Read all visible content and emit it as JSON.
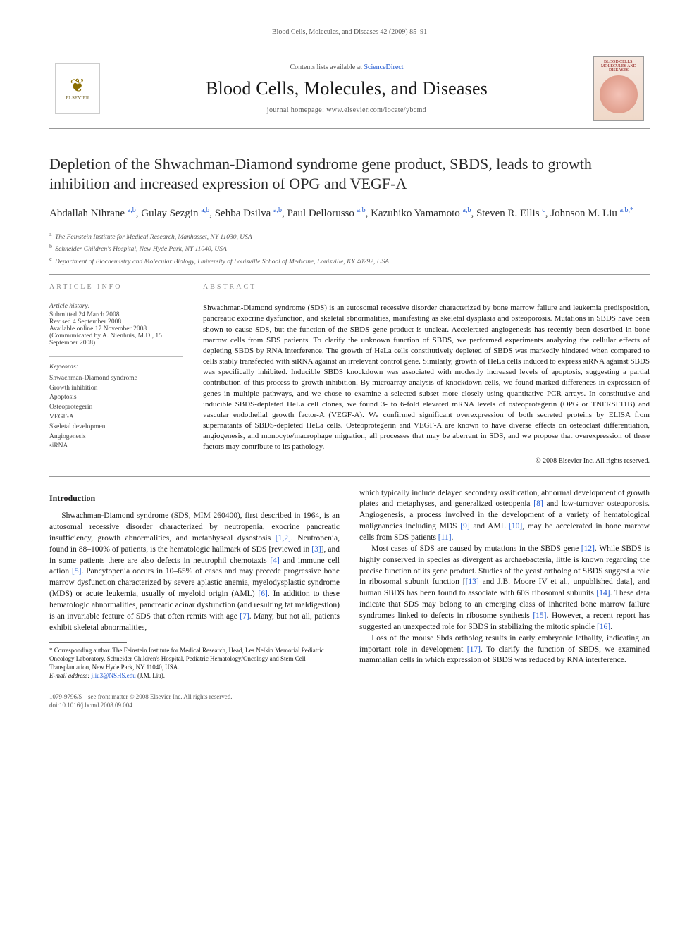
{
  "running_head": "Blood Cells, Molecules, and Diseases 42 (2009) 85–91",
  "masthead": {
    "contents_prefix": "Contents lists available at ",
    "contents_link": "ScienceDirect",
    "journal_title": "Blood Cells, Molecules, and Diseases",
    "homepage_prefix": "journal homepage: ",
    "homepage_url": "www.elsevier.com/locate/ybcmd",
    "elsevier_label": "ELSEVIER",
    "cover_text": "BLOOD CELLS, MOLECULES AND DISEASES"
  },
  "title": "Depletion of the Shwachman-Diamond syndrome gene product, SBDS, leads to growth inhibition and increased expression of OPG and VEGF-A",
  "authors_html": "Abdallah Nihrane <sup>a,b</sup>, Gulay Sezgin <sup>a,b</sup>, Sehba Dsilva <sup>a,b</sup>, Paul Dellorusso <sup>a,b</sup>, Kazuhiko Yamamoto <sup>a,b</sup>, Steven R. Ellis <sup>c</sup>, Johnson M. Liu <sup>a,b,*</sup>",
  "affiliations": {
    "a": "The Feinstein Institute for Medical Research, Manhasset, NY 11030, USA",
    "b": "Schneider Children's Hospital, New Hyde Park, NY 11040, USA",
    "c": "Department of Biochemistry and Molecular Biology, University of Louisville School of Medicine, Louisville, KY 40292, USA"
  },
  "article_info": {
    "heading": "ARTICLE INFO",
    "history_label": "Article history:",
    "history": [
      "Submitted 24 March 2008",
      "Revised 4 September 2008",
      "Available online 17 November 2008",
      "(Communicated by A. Nienhuis, M.D., 15 September 2008)"
    ],
    "keywords_label": "Keywords:",
    "keywords": [
      "Shwachman-Diamond syndrome",
      "Growth inhibition",
      "Apoptosis",
      "Osteoprotegerin",
      "VEGF-A",
      "Skeletal development",
      "Angiogenesis",
      "siRNA"
    ]
  },
  "abstract": {
    "heading": "ABSTRACT",
    "text": "Shwachman-Diamond syndrome (SDS) is an autosomal recessive disorder characterized by bone marrow failure and leukemia predisposition, pancreatic exocrine dysfunction, and skeletal abnormalities, manifesting as skeletal dysplasia and osteoporosis. Mutations in SBDS have been shown to cause SDS, but the function of the SBDS gene product is unclear. Accelerated angiogenesis has recently been described in bone marrow cells from SDS patients. To clarify the unknown function of SBDS, we performed experiments analyzing the cellular effects of depleting SBDS by RNA interference. The growth of HeLa cells constitutively depleted of SBDS was markedly hindered when compared to cells stably transfected with siRNA against an irrelevant control gene. Similarly, growth of HeLa cells induced to express siRNA against SBDS was specifically inhibited. Inducible SBDS knockdown was associated with modestly increased levels of apoptosis, suggesting a partial contribution of this process to growth inhibition. By microarray analysis of knockdown cells, we found marked differences in expression of genes in multiple pathways, and we chose to examine a selected subset more closely using quantitative PCR arrays. In constitutive and inducible SBDS-depleted HeLa cell clones, we found 3- to 6-fold elevated mRNA levels of osteoprotegerin (OPG or TNFRSF11B) and vascular endothelial growth factor-A (VEGF-A). We confirmed significant overexpression of both secreted proteins by ELISA from supernatants of SBDS-depleted HeLa cells. Osteoprotegerin and VEGF-A are known to have diverse effects on osteoclast differentiation, angiogenesis, and monocyte/macrophage migration, all processes that may be aberrant in SDS, and we propose that overexpression of these factors may contribute to its pathology.",
    "copyright": "© 2008 Elsevier Inc. All rights reserved."
  },
  "body": {
    "intro_heading": "Introduction",
    "p1": "Shwachman-Diamond syndrome (SDS, MIM 260400), first described in 1964, is an autosomal recessive disorder characterized by neutropenia, exocrine pancreatic insufficiency, growth abnormalities, and metaphyseal dysostosis [1,2]. Neutropenia, found in 88–100% of patients, is the hematologic hallmark of SDS [reviewed in [3]], and in some patients there are also defects in neutrophil chemotaxis [4] and immune cell action [5]. Pancytopenia occurs in 10–65% of cases and may precede progressive bone marrow dysfunction characterized by severe aplastic anemia, myelodysplastic syndrome (MDS) or acute leukemia, usually of myeloid origin (AML) [6]. In addition to these hematologic abnormalities, pancreatic acinar dysfunction (and resulting fat maldigestion) is an invariable feature of SDS that often remits with age [7]. Many, but not all, patients exhibit skeletal abnormalities,",
    "p2": "which typically include delayed secondary ossification, abnormal development of growth plates and metaphyses, and generalized osteopenia [8] and low-turnover osteoporosis. Angiogenesis, a process involved in the development of a variety of hematological malignancies including MDS [9] and AML [10], may be accelerated in bone marrow cells from SDS patients [11].",
    "p3": "Most cases of SDS are caused by mutations in the SBDS gene [12]. While SBDS is highly conserved in species as divergent as archaebacteria, little is known regarding the precise function of its gene product. Studies of the yeast ortholog of SBDS suggest a role in ribosomal subunit function [[13] and J.B. Moore IV et al., unpublished data], and human SBDS has been found to associate with 60S ribosomal subunits [14]. These data indicate that SDS may belong to an emerging class of inherited bone marrow failure syndromes linked to defects in ribosome synthesis [15]. However, a recent report has suggested an unexpected role for SBDS in stabilizing the mitotic spindle [16].",
    "p4": "Loss of the mouse Sbds ortholog results in early embryonic lethality, indicating an important role in development [17]. To clarify the function of SBDS, we examined mammalian cells in which expression of SBDS was reduced by RNA interference."
  },
  "footnotes": {
    "corresponding": "* Corresponding author. The Feinstein Institute for Medical Research, Head, Les Nelkin Memorial Pediatric Oncology Laboratory, Schneider Children's Hospital, Pediatric Hematology/Oncology and Stem Cell Transplantation, New Hyde Park, NY 11040, USA.",
    "email_label": "E-mail address: ",
    "email": "jliu3@NSHS.edu",
    "email_suffix": " (J.M. Liu)."
  },
  "bottom": {
    "line1": "1079-9796/$ – see front matter © 2008 Elsevier Inc. All rights reserved.",
    "line2": "doi:10.1016/j.bcmd.2008.09.004"
  },
  "colors": {
    "link": "#2058d0",
    "text": "#1a1a1a",
    "muted": "#555",
    "rule": "#999"
  }
}
